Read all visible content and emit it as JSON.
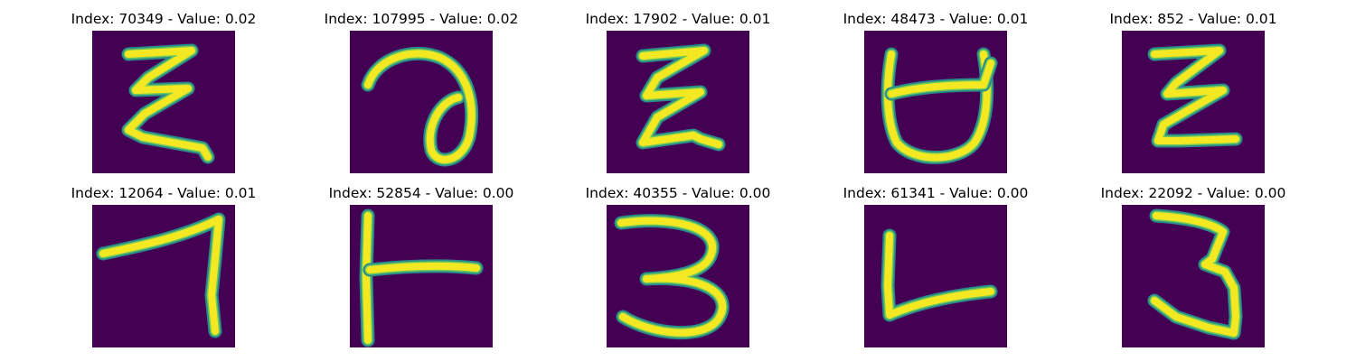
{
  "figure": {
    "colors": {
      "background_tile": "#440154",
      "stroke_core": "#fde725",
      "stroke_mid": "#6fc95a",
      "stroke_edge": "#2a8c8a"
    },
    "panels": [
      {
        "title": "Index: 70349 - Value: 0.02"
      },
      {
        "title": "Index: 107995 - Value: 0.02"
      },
      {
        "title": "Index: 17902 - Value: 0.01"
      },
      {
        "title": "Index: 48473 - Value: 0.01"
      },
      {
        "title": "Index: 852 - Value: 0.01"
      },
      {
        "title": "Index: 12064 - Value: 0.01"
      },
      {
        "title": "Index: 52854 - Value: 0.00"
      },
      {
        "title": "Index: 40355 - Value: 0.00"
      },
      {
        "title": "Index: 61341 - Value: 0.00"
      },
      {
        "title": "Index: 22092 - Value: 0.00"
      }
    ]
  }
}
